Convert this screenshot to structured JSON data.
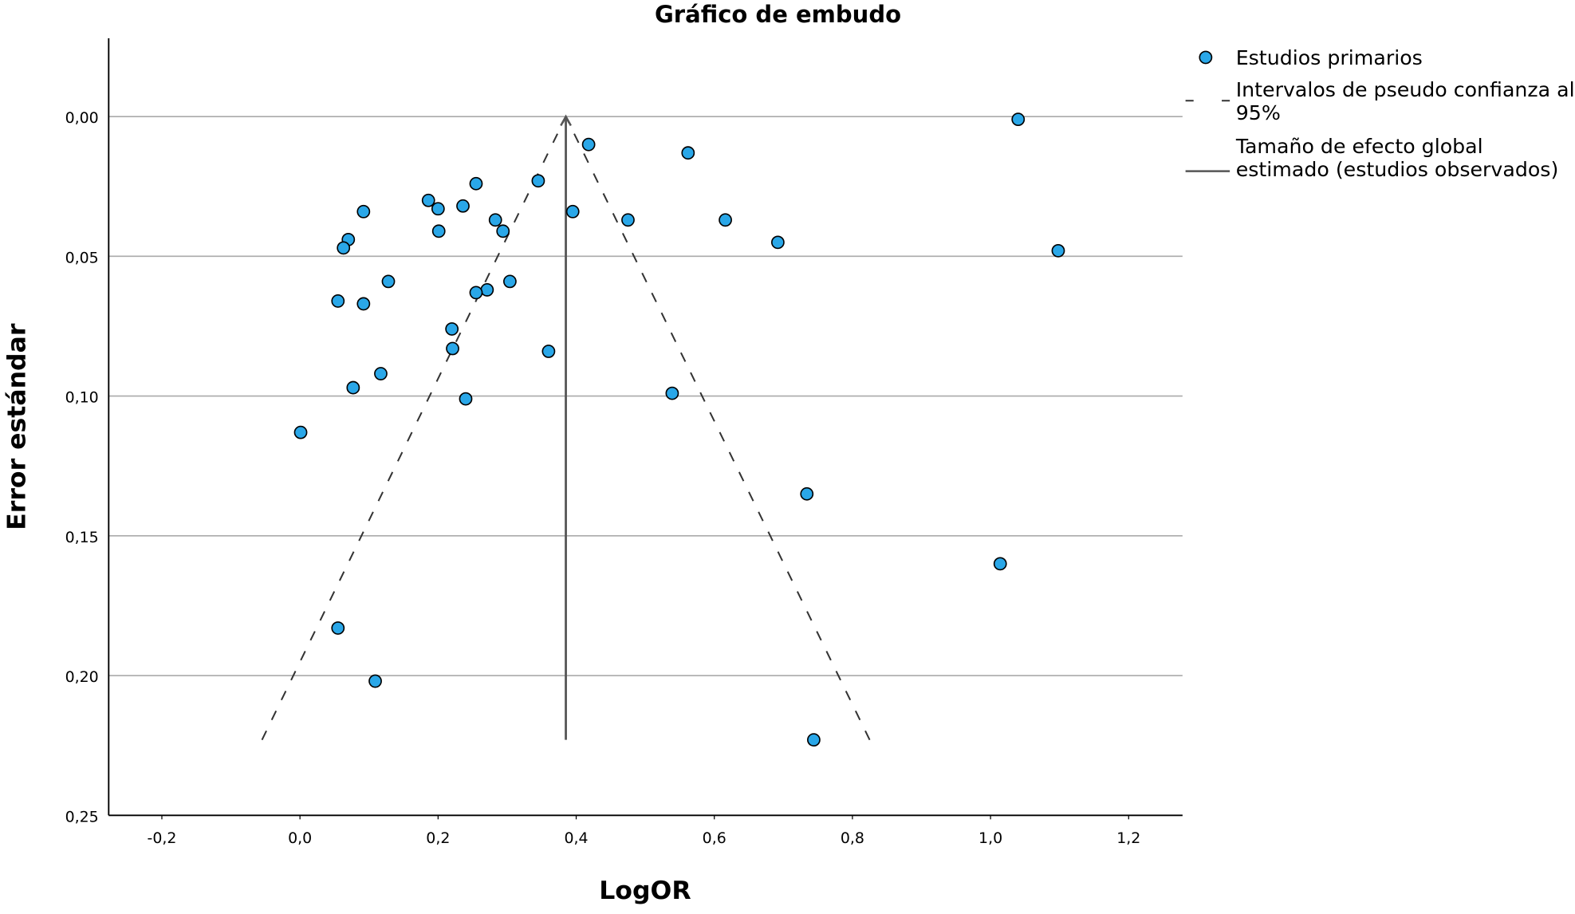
{
  "chart_data": {
    "type": "scatter",
    "title": "Gráfico de embudo",
    "x_label": "LogOR",
    "y_label": "Error estándar",
    "xlim": [
      -0.277,
      1.278
    ],
    "ylim": [
      -0.028,
      0.25
    ],
    "y_inverted": true,
    "grid": true,
    "legend": "right",
    "xticks": [
      {
        "value": -0.2,
        "label": "-0,2"
      },
      {
        "value": 0,
        "label": "0,0"
      },
      {
        "value": 0.2,
        "label": "0,2"
      },
      {
        "value": 0.4,
        "label": "0,4"
      },
      {
        "value": 0.6,
        "label": "0,6"
      },
      {
        "value": 0.8,
        "label": "0,8"
      },
      {
        "value": 1.0,
        "label": "1,0"
      },
      {
        "value": 1.2,
        "label": "1,2"
      }
    ],
    "yticks": [
      {
        "value": 0,
        "label": "0,00"
      },
      {
        "value": 0.05,
        "label": "0,05"
      },
      {
        "value": 0.1,
        "label": "0,10"
      },
      {
        "value": 0.15,
        "label": "0,15"
      },
      {
        "value": 0.2,
        "label": "0,20"
      },
      {
        "value": 0.25,
        "label": "0,25"
      }
    ],
    "series": [
      {
        "name": "Estudios primarios",
        "color": "#2aa7e8",
        "x": [
          1.04,
          0.418,
          0.562,
          0.255,
          0.345,
          0.186,
          0.2,
          0.236,
          0.092,
          0.395,
          0.283,
          0.475,
          0.616,
          0.294,
          0.201,
          0.07,
          0.063,
          0.692,
          1.098,
          0.128,
          0.304,
          0.271,
          0.255,
          0.055,
          0.092,
          0.22,
          0.221,
          0.36,
          0.117,
          0.077,
          0.539,
          0.24,
          0.001,
          0.734,
          1.014,
          0.055,
          0.109,
          0.744
        ],
        "values": [
          0.001,
          0.01,
          0.013,
          0.024,
          0.023,
          0.03,
          0.033,
          0.032,
          0.034,
          0.034,
          0.037,
          0.037,
          0.037,
          0.041,
          0.041,
          0.044,
          0.047,
          0.045,
          0.048,
          0.059,
          0.059,
          0.062,
          0.063,
          0.066,
          0.067,
          0.076,
          0.083,
          0.084,
          0.092,
          0.097,
          0.099,
          0.101,
          0.113,
          0.135,
          0.16,
          0.183,
          0.202,
          0.223
        ]
      },
      {
        "name": "Intervalos de pseudo confianza al 95%",
        "color": "#333333",
        "dashed": true,
        "segments": [
          {
            "x": [
              -0.055,
              0.385
            ],
            "values": [
              0.223,
              0
            ]
          },
          {
            "x": [
              0.825,
              0.385
            ],
            "values": [
              0.223,
              0
            ]
          }
        ]
      },
      {
        "name": "Tamaño de efecto global estimado (estudios observados)",
        "color": "#555555",
        "x": [
          0.385,
          0.385
        ],
        "values": [
          0.223,
          0
        ]
      }
    ]
  }
}
